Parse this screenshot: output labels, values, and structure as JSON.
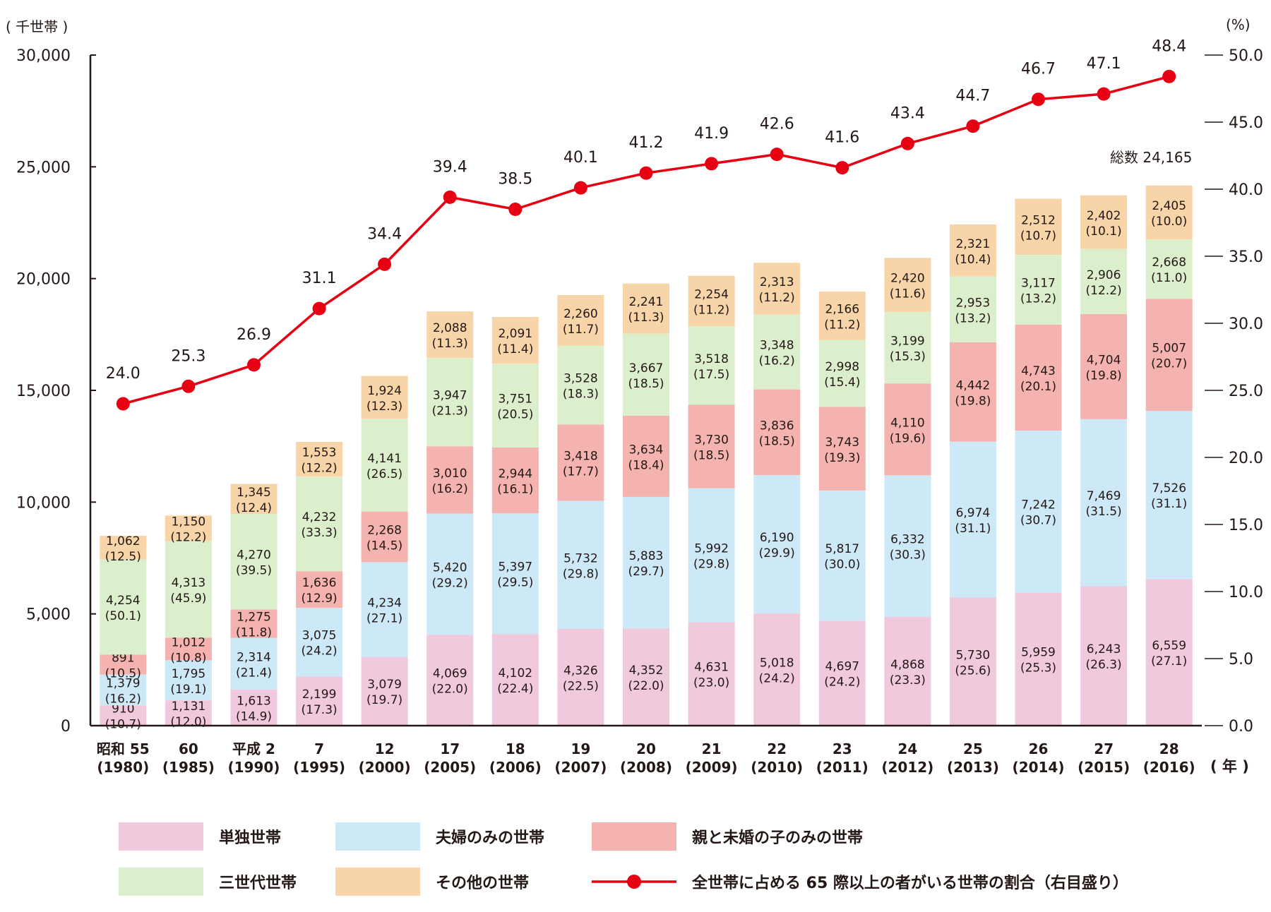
{
  "chart_data": {
    "type": "bar",
    "stacked": true,
    "left_unit": "( 千世帯 )",
    "right_unit": "(%)",
    "year_unit": "( 年 )",
    "total_label": "総数 24,165",
    "ylim": [
      0,
      30000
    ],
    "y2lim": [
      0,
      50
    ],
    "yticks": [
      0,
      5000,
      10000,
      15000,
      20000,
      25000,
      30000
    ],
    "yticks_labels": [
      "0",
      "5,000",
      "10,000",
      "15,000",
      "20,000",
      "25,000",
      "30,000"
    ],
    "y2ticks": [
      0,
      5,
      10,
      15,
      20,
      25,
      30,
      35,
      40,
      45,
      50
    ],
    "y2ticks_labels": [
      "0.0",
      "5.0",
      "10.0",
      "15.0",
      "20.0",
      "25.0",
      "30.0",
      "35.0",
      "40.0",
      "45.0",
      "50.0"
    ],
    "categories": [
      {
        "era": "昭和 55",
        "year": "(1980)"
      },
      {
        "era": "60",
        "year": "(1985)"
      },
      {
        "era": "平成 2",
        "year": "(1990)"
      },
      {
        "era": "7",
        "year": "(1995)"
      },
      {
        "era": "12",
        "year": "(2000)"
      },
      {
        "era": "17",
        "year": "(2005)"
      },
      {
        "era": "18",
        "year": "(2006)"
      },
      {
        "era": "19",
        "year": "(2007)"
      },
      {
        "era": "20",
        "year": "(2008)"
      },
      {
        "era": "21",
        "year": "(2009)"
      },
      {
        "era": "22",
        "year": "(2010)"
      },
      {
        "era": "23",
        "year": "(2011)"
      },
      {
        "era": "24",
        "year": "(2012)"
      },
      {
        "era": "25",
        "year": "(2013)"
      },
      {
        "era": "26",
        "year": "(2014)"
      },
      {
        "era": "27",
        "year": "(2015)"
      },
      {
        "era": "28",
        "year": "(2016)"
      }
    ],
    "series": [
      {
        "name": "単独世帯",
        "color": "#f1c9dd",
        "values": [
          910,
          1131,
          1613,
          2199,
          3079,
          4069,
          4102,
          4326,
          4352,
          4631,
          5018,
          4697,
          4868,
          5730,
          5959,
          6243,
          6559
        ],
        "labels": [
          "910",
          "1,131",
          "1,613",
          "2,199",
          "3,079",
          "4,069",
          "4,102",
          "4,326",
          "4,352",
          "4,631",
          "5,018",
          "4,697",
          "4,868",
          "5,730",
          "5,959",
          "6,243",
          "6,559"
        ],
        "shares": [
          "(10.7)",
          "(12.0)",
          "(14.9)",
          "(17.3)",
          "(19.7)",
          "(22.0)",
          "(22.4)",
          "(22.5)",
          "(22.0)",
          "(23.0)",
          "(24.2)",
          "(24.2)",
          "(23.3)",
          "(25.6)",
          "(25.3)",
          "(26.3)",
          "(27.1)"
        ]
      },
      {
        "name": "夫婦のみの世帯",
        "color": "#cde9f8",
        "values": [
          1379,
          1795,
          2314,
          3075,
          4234,
          5420,
          5397,
          5732,
          5883,
          5992,
          6190,
          5817,
          6332,
          6974,
          7242,
          7469,
          7526
        ],
        "labels": [
          "1,379",
          "1,795",
          "2,314",
          "3,075",
          "4,234",
          "5,420",
          "5,397",
          "5,732",
          "5,883",
          "5,992",
          "6,190",
          "5,817",
          "6,332",
          "6,974",
          "7,242",
          "7,469",
          "7,526"
        ],
        "shares": [
          "(16.2)",
          "(19.1)",
          "(21.4)",
          "(24.2)",
          "(27.1)",
          "(29.2)",
          "(29.5)",
          "(29.8)",
          "(29.7)",
          "(29.8)",
          "(29.9)",
          "(30.0)",
          "(30.3)",
          "(31.1)",
          "(30.7)",
          "(31.5)",
          "(31.1)"
        ]
      },
      {
        "name": "親と未婚の子のみの世帯",
        "color": "#f4b3ae",
        "values": [
          891,
          1012,
          1275,
          1636,
          2268,
          3010,
          2944,
          3418,
          3634,
          3730,
          3836,
          3743,
          4110,
          4442,
          4743,
          4704,
          5007
        ],
        "labels": [
          "891",
          "1,012",
          "1,275",
          "1,636",
          "2,268",
          "3,010",
          "2,944",
          "3,418",
          "3,634",
          "3,730",
          "3,836",
          "3,743",
          "4,110",
          "4,442",
          "4,743",
          "4,704",
          "5,007"
        ],
        "shares": [
          "(10.5)",
          "(10.8)",
          "(11.8)",
          "(12.9)",
          "(14.5)",
          "(16.2)",
          "(16.1)",
          "(17.7)",
          "(18.4)",
          "(18.5)",
          "(18.5)",
          "(19.3)",
          "(19.6)",
          "(19.8)",
          "(20.1)",
          "(19.8)",
          "(20.7)"
        ]
      },
      {
        "name": "三世代世帯",
        "color": "#dcefcd",
        "values": [
          4254,
          4313,
          4270,
          4232,
          4141,
          3947,
          3751,
          3528,
          3667,
          3518,
          3348,
          2998,
          3199,
          2953,
          3117,
          2906,
          2668
        ],
        "labels": [
          "4,254",
          "4,313",
          "4,270",
          "4,232",
          "4,141",
          "3,947",
          "3,751",
          "3,528",
          "3,667",
          "3,518",
          "3,348",
          "2,998",
          "3,199",
          "2,953",
          "3,117",
          "2,906",
          "2,668"
        ],
        "shares": [
          "(50.1)",
          "(45.9)",
          "(39.5)",
          "(33.3)",
          "(26.5)",
          "(21.3)",
          "(20.5)",
          "(18.3)",
          "(18.5)",
          "(17.5)",
          "(16.2)",
          "(15.4)",
          "(15.3)",
          "(13.2)",
          "(13.2)",
          "(12.2)",
          "(11.0)"
        ]
      },
      {
        "name": "その他の世帯",
        "color": "#f8d5a8",
        "values": [
          1062,
          1150,
          1345,
          1553,
          1924,
          2088,
          2091,
          2260,
          2241,
          2254,
          2313,
          2166,
          2420,
          2321,
          2512,
          2402,
          2405
        ],
        "labels": [
          "1,062",
          "1,150",
          "1,345",
          "1,553",
          "1,924",
          "2,088",
          "2,091",
          "2,260",
          "2,241",
          "2,254",
          "2,313",
          "2,166",
          "2,420",
          "2,321",
          "2,512",
          "2,402",
          "2,405"
        ],
        "shares": [
          "(12.5)",
          "(12.2)",
          "(12.4)",
          "(12.2)",
          "(12.3)",
          "(11.3)",
          "(11.4)",
          "(11.7)",
          "(11.3)",
          "(11.2)",
          "(11.2)",
          "(11.2)",
          "(11.6)",
          "(10.4)",
          "(10.7)",
          "(10.1)",
          "(10.0)"
        ]
      }
    ],
    "line": {
      "name": "全世帯に占める 65 際以上の者がいる世帯の割合（右目盛り）",
      "color": "#e60012",
      "axis": "right",
      "values": [
        24.0,
        25.3,
        26.9,
        31.1,
        34.4,
        39.4,
        38.5,
        40.1,
        41.2,
        41.9,
        42.6,
        41.6,
        43.4,
        44.7,
        46.7,
        47.1,
        48.4
      ],
      "labels": [
        "24.0",
        "25.3",
        "26.9",
        "31.1",
        "34.4",
        "39.4",
        "38.5",
        "40.1",
        "41.2",
        "41.9",
        "42.6",
        "41.6",
        "43.4",
        "44.7",
        "46.7",
        "47.1",
        "48.4"
      ]
    }
  }
}
